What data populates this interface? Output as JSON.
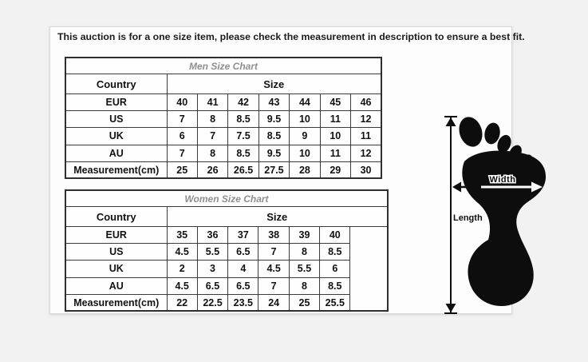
{
  "notice": {
    "text": "This auction is for a one size item, please check the measurement in description to ensure a best fit."
  },
  "men_chart": {
    "title": "Men Size Chart",
    "country_header": "Country",
    "size_header": "Size",
    "rows": [
      {
        "label": "EUR",
        "values": [
          "40",
          "41",
          "42",
          "43",
          "44",
          "45",
          "46"
        ]
      },
      {
        "label": "US",
        "values": [
          "7",
          "8",
          "8.5",
          "9.5",
          "10",
          "11",
          "12"
        ]
      },
      {
        "label": "UK",
        "values": [
          "6",
          "7",
          "7.5",
          "8.5",
          "9",
          "10",
          "11"
        ]
      },
      {
        "label": "AU",
        "values": [
          "7",
          "8",
          "8.5",
          "9.5",
          "10",
          "11",
          "12"
        ]
      },
      {
        "label": "Measurement(cm)",
        "values": [
          "25",
          "26",
          "26.5",
          "27.5",
          "28",
          "29",
          "30"
        ]
      }
    ]
  },
  "women_chart": {
    "title": "Women Size Chart",
    "country_header": "Country",
    "size_header": "Size",
    "has_trailing_empty_column": true,
    "rows": [
      {
        "label": "EUR",
        "values": [
          "35",
          "36",
          "37",
          "38",
          "39",
          "40"
        ]
      },
      {
        "label": "US",
        "values": [
          "4.5",
          "5.5",
          "6.5",
          "7",
          "8",
          "8.5"
        ]
      },
      {
        "label": "UK",
        "values": [
          "2",
          "3",
          "4",
          "4.5",
          "5.5",
          "6"
        ]
      },
      {
        "label": "AU",
        "values": [
          "4.5",
          "6.5",
          "6.5",
          "7",
          "8",
          "8.5"
        ]
      },
      {
        "label": "Measurement(cm)",
        "values": [
          "22",
          "22.5",
          "23.5",
          "24",
          "25",
          "25.5"
        ]
      }
    ]
  },
  "foot_diagram": {
    "width_label": "Width",
    "length_label": "Length"
  },
  "colors": {
    "page_background": "#f2f2f2",
    "card_background": "#fdfdfd",
    "table_border": "#3b3b3b",
    "chart_title_gray": "#8f8f8f",
    "text_black": "#111111",
    "foot_black": "#0d0d0d"
  }
}
